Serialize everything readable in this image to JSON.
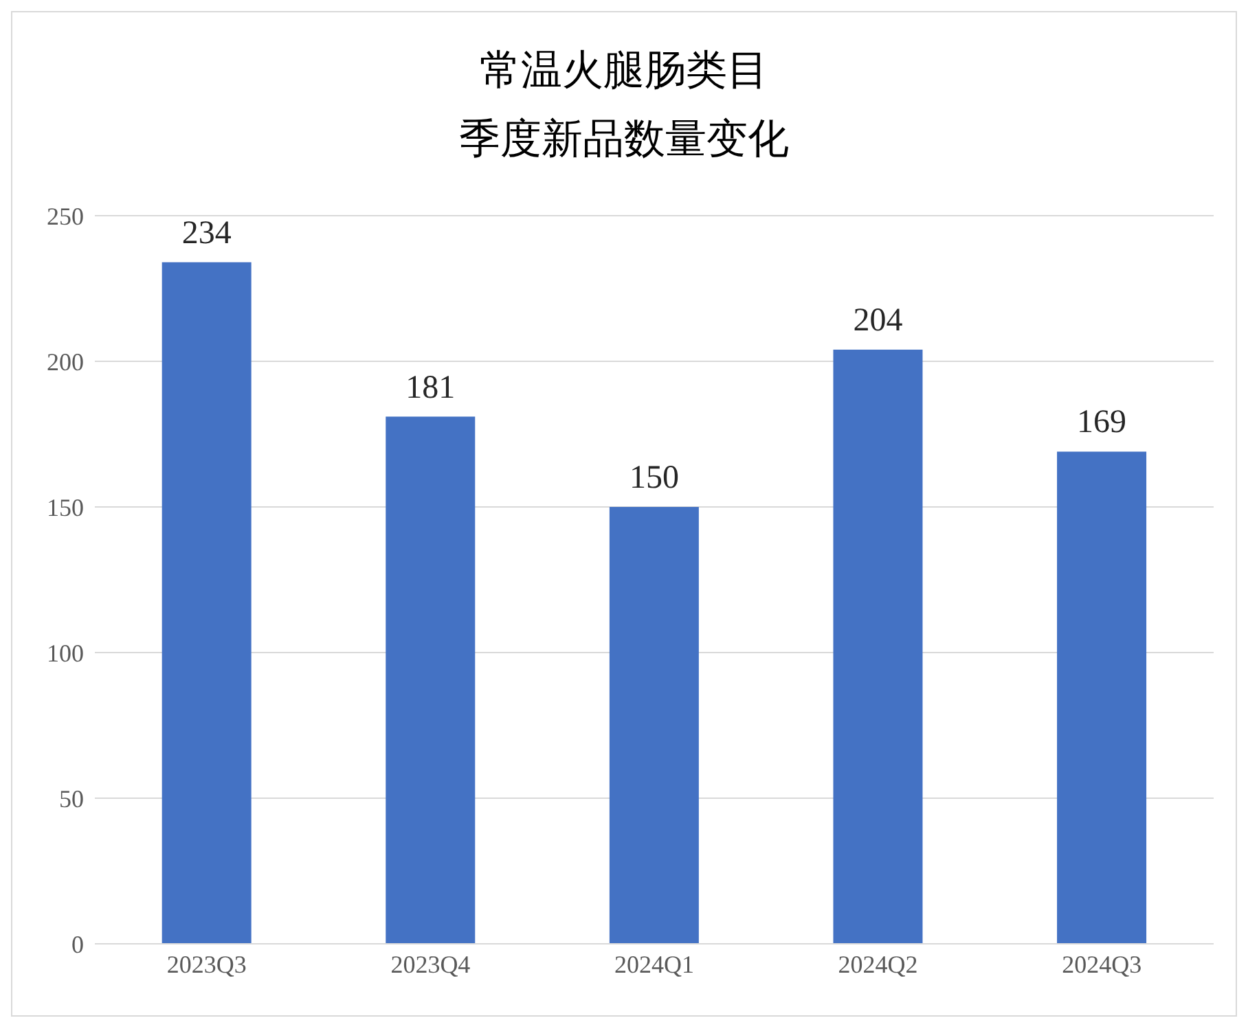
{
  "chart_data": {
    "type": "bar",
    "title": "常温火腿肠类目",
    "subtitle": "季度新品数量变化",
    "categories": [
      "2023Q3",
      "2023Q4",
      "2024Q1",
      "2024Q2",
      "2024Q3"
    ],
    "values": [
      234,
      181,
      150,
      204,
      169
    ],
    "color": "#4472c4",
    "ylim": [
      0,
      250
    ],
    "yticks": [
      0,
      50,
      100,
      150,
      200,
      250
    ],
    "grid": "y",
    "data_labels": true,
    "legend": false
  }
}
